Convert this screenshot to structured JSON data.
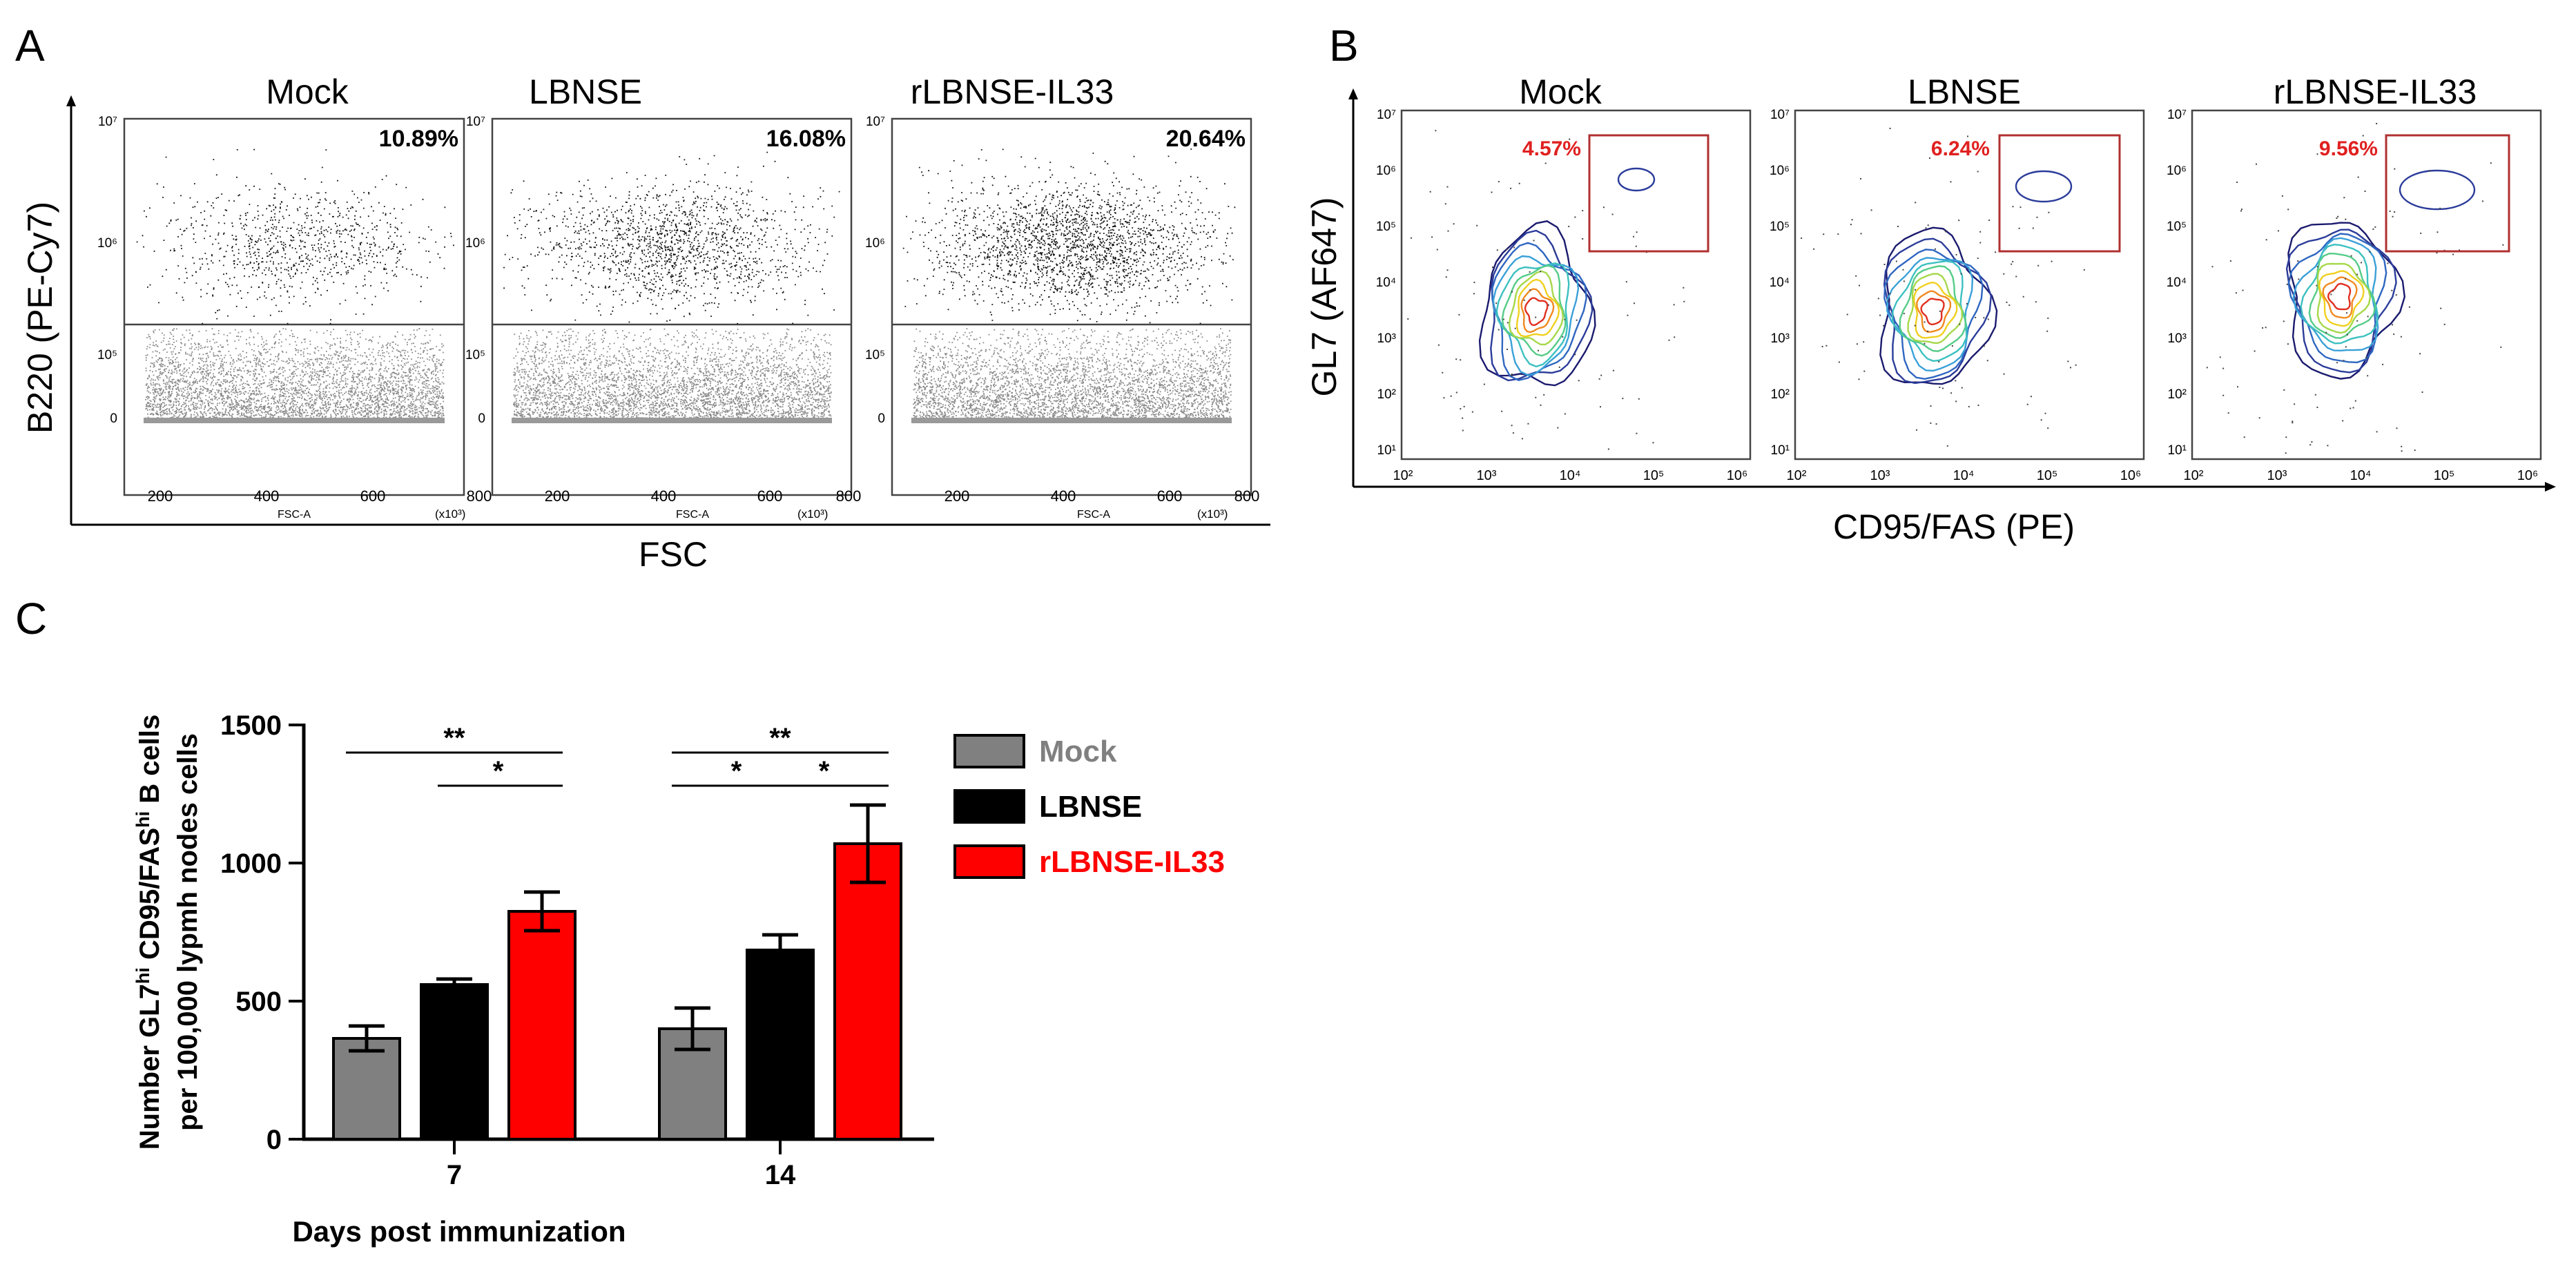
{
  "panel_a": {
    "label": "A",
    "y_axis_title": "B220 (PE-Cy7)",
    "x_axis_title": "FSC",
    "plot_x_label": "FSC-A",
    "plot_x_unit": "(x10³)",
    "y_ticks": [
      "10⁷",
      "10⁶",
      "10⁵",
      "0"
    ],
    "x_ticks": [
      "200",
      "400",
      "600",
      "800"
    ],
    "plots": [
      {
        "title": "Mock",
        "percent": "10.89%",
        "upper_density": 0.35
      },
      {
        "title": "LBNSE",
        "percent": "16.08%",
        "upper_density": 0.6
      },
      {
        "title": "rLBNSE-IL33",
        "percent": "20.64%",
        "upper_density": 0.85
      }
    ]
  },
  "panel_b": {
    "label": "B",
    "y_axis_title": "GL7 (AF647)",
    "x_axis_title": "CD95/FAS (PE)",
    "y_ticks": [
      "10⁷",
      "10⁶",
      "10⁵",
      "10⁴",
      "10³",
      "10²",
      "10¹"
    ],
    "x_ticks": [
      "10²",
      "10³",
      "10⁴",
      "10⁵",
      "10⁶"
    ],
    "plots": [
      {
        "title": "Mock",
        "percent": "4.57%"
      },
      {
        "title": "LBNSE",
        "percent": "6.24%"
      },
      {
        "title": "rLBNSE-IL33",
        "percent": "9.56%"
      }
    ]
  },
  "panel_c": {
    "label": "C"
  },
  "colors": {
    "mock": "#808080",
    "lbnse": "#000000",
    "il33": "#ff0000",
    "gate": "#b03030",
    "percent_text": "#e02020"
  },
  "chart_data": {
    "type": "bar",
    "title": "",
    "xlabel": "Days post immunization",
    "ylabel": "Number GL7hi CD95/FAShi B cells per 100,000 lypmh nodes cells",
    "ylabel_line1": "Number GL7",
    "ylabel_sup1": "hi",
    "ylabel_mid": " CD95/FAS",
    "ylabel_sup2": "hi",
    "ylabel_end": " B cells",
    "ylabel_line2": "per 100,000 lypmh nodes cells",
    "ylim": [
      0,
      1500
    ],
    "yticks": [
      0,
      500,
      1000,
      1500
    ],
    "categories": [
      "7",
      "14"
    ],
    "series": [
      {
        "name": "Mock",
        "values": [
          365,
          400
        ],
        "errors": [
          45,
          75
        ]
      },
      {
        "name": "LBNSE",
        "values": [
          560,
          685
        ],
        "errors": [
          20,
          55
        ]
      },
      {
        "name": "rLBNSE-IL33",
        "values": [
          825,
          1070
        ],
        "errors": [
          70,
          140
        ]
      }
    ],
    "significance": [
      {
        "group": 0,
        "from": 0,
        "to": 2,
        "label": "**",
        "y": 1400
      },
      {
        "group": 0,
        "from": 1,
        "to": 2,
        "label": "*",
        "y": 1280
      },
      {
        "group": 1,
        "from": 0,
        "to": 2,
        "label": "**",
        "y": 1400
      },
      {
        "group": 1,
        "from": 0,
        "to": 1,
        "label": "*",
        "y": 1280
      },
      {
        "group": 1,
        "from": 1,
        "to": 2,
        "label": "*",
        "y": 1280
      }
    ]
  }
}
